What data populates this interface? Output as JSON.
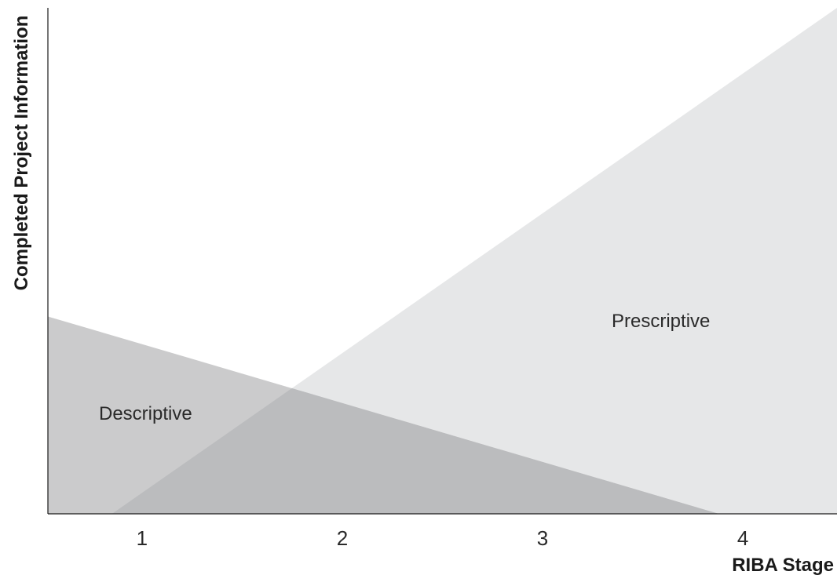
{
  "colors": {
    "prescriptive_fill": "#e6e7e8",
    "descriptive_fill": "#cbcbcc",
    "overlap_fill": "#bbbcbe",
    "axis": "#1a1a1a"
  },
  "chart_data": {
    "type": "area",
    "xlabel": "RIBA Stage",
    "ylabel": "Completed Project Information",
    "x_ticks": [
      1,
      2,
      3,
      4
    ],
    "xlim": [
      0.53,
      4.47
    ],
    "ylim": [
      0,
      100
    ],
    "grid": false,
    "series": [
      {
        "name": "Descriptive",
        "points": [
          [
            0.53,
            39
          ],
          [
            3.88,
            0
          ]
        ]
      },
      {
        "name": "Prescriptive",
        "points": [
          [
            0.85,
            0
          ],
          [
            4.47,
            100
          ]
        ]
      }
    ]
  }
}
